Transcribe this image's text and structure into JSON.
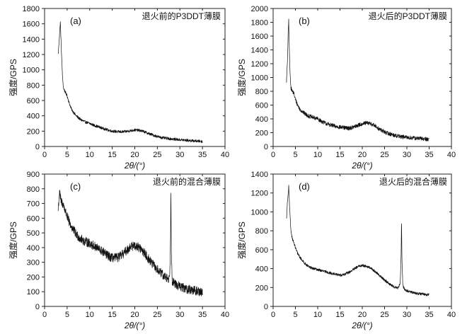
{
  "chart_data": [
    {
      "type": "line",
      "panel_label": "(a)",
      "title": "退火前的P3DDT薄膜",
      "xlabel": "2θ/(°)",
      "ylabel": "强度/GPS",
      "xlim": [
        0,
        40
      ],
      "ylim": [
        0,
        1800
      ],
      "xticks": [
        0,
        5,
        10,
        15,
        20,
        25,
        30,
        35,
        40
      ],
      "yticks": [
        0,
        200,
        400,
        600,
        800,
        1000,
        1200,
        1400,
        1600,
        1800
      ],
      "noise": 18,
      "series": [
        {
          "x": [
            3.0,
            3.2,
            3.4,
            3.5,
            3.6,
            3.8,
            4.0,
            4.2,
            4.5,
            5.0,
            5.5,
            6.0,
            7.0,
            8.0,
            9.0,
            10.0,
            11.0,
            12.0,
            13.0,
            14.0,
            15.0,
            16.0,
            17.0,
            18.0,
            19.0,
            20.0,
            21.0,
            22.0,
            23.0,
            24.0,
            25.0,
            26.0,
            28.0,
            30.0,
            32.0,
            34.0,
            35.0
          ],
          "y": [
            1200,
            1350,
            1550,
            1620,
            1450,
            1150,
            880,
            760,
            720,
            660,
            560,
            480,
            400,
            350,
            320,
            300,
            275,
            255,
            235,
            215,
            200,
            195,
            190,
            195,
            205,
            215,
            210,
            195,
            170,
            150,
            130,
            115,
            100,
            88,
            78,
            70,
            65
          ]
        }
      ]
    },
    {
      "type": "line",
      "panel_label": "(b)",
      "title": "退火后的P3DDT薄膜",
      "xlabel": "2θ/(°)",
      "ylabel": "强度/GPS",
      "xlim": [
        0,
        40
      ],
      "ylim": [
        0,
        2000
      ],
      "xticks": [
        0,
        5,
        10,
        15,
        20,
        25,
        30,
        35,
        40
      ],
      "yticks": [
        0,
        200,
        400,
        600,
        800,
        1000,
        1200,
        1400,
        1600,
        1800,
        2000
      ],
      "noise": 30,
      "series": [
        {
          "x": [
            3.0,
            3.2,
            3.4,
            3.5,
            3.6,
            3.8,
            4.0,
            4.3,
            4.6,
            5.0,
            5.5,
            6.0,
            7.0,
            8.0,
            9.0,
            10.0,
            11.0,
            12.0,
            13.0,
            14.0,
            15.0,
            16.0,
            17.0,
            18.0,
            19.0,
            20.0,
            21.0,
            22.0,
            23.0,
            24.0,
            25.0,
            26.0,
            28.0,
            30.0,
            32.0,
            34.0,
            35.0
          ],
          "y": [
            950,
            1200,
            1700,
            1830,
            1500,
            1050,
            850,
            800,
            780,
            680,
            600,
            540,
            480,
            440,
            420,
            400,
            360,
            330,
            310,
            290,
            280,
            270,
            265,
            280,
            305,
            330,
            340,
            330,
            290,
            245,
            210,
            185,
            150,
            130,
            120,
            110,
            105
          ]
        }
      ]
    },
    {
      "type": "line",
      "panel_label": "(c)",
      "title": "退火前的混合薄膜",
      "xlabel": "2θ/(°)",
      "ylabel": "强度/GPS",
      "xlim": [
        0,
        40
      ],
      "ylim": [
        0,
        900
      ],
      "xticks": [
        0,
        5,
        10,
        15,
        20,
        25,
        30,
        35,
        40
      ],
      "yticks": [
        0,
        100,
        200,
        300,
        400,
        500,
        600,
        700,
        800,
        900
      ],
      "noise": 32,
      "series": [
        {
          "x": [
            3.0,
            3.3,
            3.6,
            4.0,
            4.5,
            5.0,
            5.5,
            6.0,
            7.0,
            8.0,
            9.0,
            10.0,
            11.0,
            12.0,
            13.0,
            14.0,
            15.0,
            16.0,
            17.0,
            18.0,
            19.0,
            20.0,
            21.0,
            22.0,
            23.0,
            24.0,
            25.0,
            26.0,
            27.0,
            27.7,
            27.9,
            28.0,
            28.1,
            28.3,
            28.6,
            29.0,
            30.0,
            31.0,
            32.0,
            33.0,
            34.0,
            35.0
          ],
          "y": [
            650,
            780,
            720,
            700,
            660,
            610,
            570,
            540,
            490,
            460,
            440,
            430,
            410,
            390,
            370,
            345,
            330,
            330,
            345,
            375,
            405,
            415,
            400,
            370,
            325,
            285,
            250,
            220,
            195,
            190,
            400,
            800,
            400,
            175,
            160,
            150,
            135,
            125,
            115,
            108,
            102,
            98
          ]
        }
      ]
    },
    {
      "type": "line",
      "panel_label": "(d)",
      "title": "退火后的混合薄膜",
      "xlabel": "2θ/(°)",
      "ylabel": "强度/GPS",
      "xlim": [
        0,
        40
      ],
      "ylim": [
        0,
        1400
      ],
      "xticks": [
        0,
        5,
        10,
        15,
        20,
        25,
        30,
        35,
        40
      ],
      "yticks": [
        0,
        200,
        400,
        600,
        800,
        1000,
        1200,
        1400
      ],
      "noise": 14,
      "series": [
        {
          "x": [
            3.0,
            3.2,
            3.4,
            3.5,
            3.6,
            3.8,
            4.0,
            4.3,
            4.6,
            5.0,
            5.5,
            6.0,
            7.0,
            8.0,
            9.0,
            10.0,
            11.0,
            12.0,
            13.0,
            14.0,
            15.0,
            16.0,
            17.0,
            18.0,
            19.0,
            20.0,
            21.0,
            22.0,
            23.0,
            24.0,
            25.0,
            26.0,
            27.0,
            28.0,
            28.5,
            28.7,
            28.8,
            28.9,
            29.1,
            29.5,
            30.0,
            31.0,
            32.0,
            33.0,
            34.0,
            35.0
          ],
          "y": [
            920,
            1100,
            1200,
            1270,
            1150,
            950,
            800,
            720,
            680,
            620,
            560,
            520,
            460,
            420,
            400,
            390,
            375,
            365,
            350,
            340,
            330,
            340,
            360,
            390,
            420,
            435,
            425,
            400,
            365,
            320,
            280,
            240,
            210,
            195,
            240,
            500,
            920,
            500,
            220,
            180,
            165,
            150,
            140,
            133,
            127,
            122
          ]
        }
      ]
    }
  ]
}
